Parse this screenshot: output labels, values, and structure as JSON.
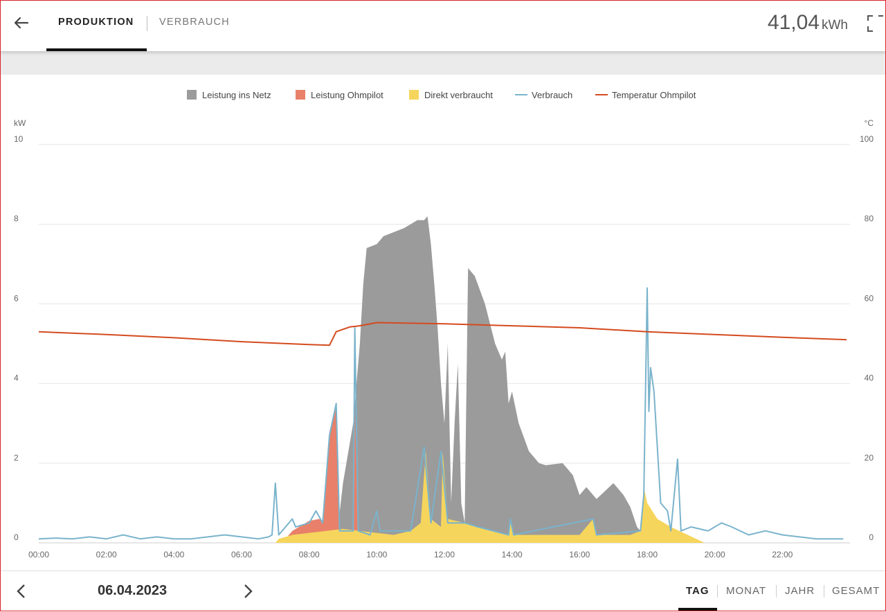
{
  "header": {
    "tabs": [
      {
        "label": "PRODUKTION",
        "active": true
      },
      {
        "label": "VERBRAUCH",
        "active": false
      }
    ],
    "total_value": "41,04",
    "total_unit": "kWh",
    "back_icon": "arrow-left-icon",
    "fullscreen_icon": "fullscreen-icon"
  },
  "legend": [
    {
      "label": "Leistung ins Netz",
      "color": "#9b9b9b",
      "kind": "area"
    },
    {
      "label": "Leistung Ohmpilot",
      "color": "#e8806a",
      "kind": "area"
    },
    {
      "label": "Direkt verbraucht",
      "color": "#f6d55c",
      "kind": "area"
    },
    {
      "label": "Verbrauch",
      "color": "#7ab3cc",
      "kind": "line"
    },
    {
      "label": "Temperatur Ohmpilot",
      "color": "#d44a1e",
      "kind": "line"
    }
  ],
  "chart_data": {
    "type": "area",
    "left_axis": {
      "unit": "kW",
      "ticks": [
        "10",
        "8",
        "6",
        "4",
        "2",
        "0"
      ],
      "range": [
        0,
        10
      ]
    },
    "right_axis": {
      "unit": "°C",
      "ticks": [
        "100",
        "80",
        "60",
        "40",
        "20",
        "0"
      ],
      "range": [
        0,
        100
      ]
    },
    "x_axis": {
      "ticks": [
        "00:00",
        "02:00",
        "04:00",
        "06:00",
        "08:00",
        "10:00",
        "12:00",
        "14:00",
        "16:00",
        "18:00",
        "20:00",
        "22:00"
      ],
      "range_hours": [
        0,
        24
      ]
    },
    "grid": true,
    "series": [
      {
        "name": "Direkt verbraucht",
        "color": "#f6d55c",
        "axis": "kW",
        "points": [
          [
            7.0,
            0
          ],
          [
            7.1,
            0.1
          ],
          [
            7.5,
            0.2
          ],
          [
            8.0,
            0.25
          ],
          [
            8.5,
            0.3
          ],
          [
            9.0,
            0.35
          ],
          [
            9.5,
            0.3
          ],
          [
            10.0,
            0.25
          ],
          [
            10.5,
            0.2
          ],
          [
            11.0,
            0.3
          ],
          [
            11.3,
            0.5
          ],
          [
            11.45,
            2.3
          ],
          [
            11.6,
            0.6
          ],
          [
            11.9,
            0.4
          ],
          [
            11.95,
            2.3
          ],
          [
            12.1,
            0.6
          ],
          [
            12.6,
            0.5
          ],
          [
            13.0,
            0.4
          ],
          [
            13.5,
            0.3
          ],
          [
            13.9,
            0.2
          ],
          [
            13.95,
            0.6
          ],
          [
            14.05,
            0.2
          ],
          [
            15.0,
            0.2
          ],
          [
            16.0,
            0.2
          ],
          [
            16.4,
            0.6
          ],
          [
            16.5,
            0.2
          ],
          [
            17.5,
            0.2
          ],
          [
            17.8,
            0.3
          ],
          [
            17.9,
            1.4
          ],
          [
            18.0,
            1.0
          ],
          [
            18.3,
            0.6
          ],
          [
            18.7,
            0.4
          ],
          [
            19.2,
            0.2
          ],
          [
            19.7,
            0.0
          ]
        ]
      },
      {
        "name": "Leistung Ohmpilot",
        "color": "#e8806a",
        "axis": "kW",
        "points": [
          [
            7.2,
            0
          ],
          [
            7.5,
            0.3
          ],
          [
            8.0,
            0.55
          ],
          [
            8.3,
            0.6
          ],
          [
            8.4,
            0.5
          ],
          [
            8.6,
            2.8
          ],
          [
            8.8,
            3.4
          ],
          [
            8.9,
            0.3
          ],
          [
            9.3,
            0.3
          ],
          [
            9.35,
            3.4
          ],
          [
            9.45,
            0.2
          ],
          [
            9.5,
            0
          ]
        ]
      },
      {
        "name": "Leistung ins Netz",
        "color": "#9b9b9b",
        "axis": "kW",
        "points": [
          [
            8.8,
            0
          ],
          [
            9.0,
            1.5
          ],
          [
            9.3,
            3.0
          ],
          [
            9.5,
            5.0
          ],
          [
            9.6,
            6.5
          ],
          [
            9.7,
            7.4
          ],
          [
            10.0,
            7.5
          ],
          [
            10.2,
            7.7
          ],
          [
            10.5,
            7.8
          ],
          [
            10.8,
            7.9
          ],
          [
            11.0,
            8.0
          ],
          [
            11.2,
            8.1
          ],
          [
            11.4,
            8.1
          ],
          [
            11.5,
            8.2
          ],
          [
            11.6,
            7.5
          ],
          [
            11.7,
            6.5
          ],
          [
            11.8,
            5.4
          ],
          [
            11.9,
            4.0
          ],
          [
            12.0,
            3.0
          ],
          [
            12.1,
            5.0
          ],
          [
            12.2,
            1.0
          ],
          [
            12.3,
            3.0
          ],
          [
            12.4,
            4.5
          ],
          [
            12.5,
            1.0
          ],
          [
            12.6,
            0.5
          ],
          [
            12.7,
            6.9
          ],
          [
            12.9,
            6.7
          ],
          [
            13.2,
            6.0
          ],
          [
            13.5,
            5.0
          ],
          [
            13.7,
            4.6
          ],
          [
            13.8,
            4.8
          ],
          [
            13.9,
            3.5
          ],
          [
            14.0,
            3.8
          ],
          [
            14.2,
            3.0
          ],
          [
            14.5,
            2.3
          ],
          [
            14.8,
            2.0
          ],
          [
            15.0,
            1.95
          ],
          [
            15.5,
            2.0
          ],
          [
            15.8,
            1.7
          ],
          [
            16.0,
            1.2
          ],
          [
            16.2,
            1.4
          ],
          [
            16.5,
            1.1
          ],
          [
            17.0,
            1.5
          ],
          [
            17.3,
            1.2
          ],
          [
            17.5,
            0.9
          ],
          [
            17.7,
            0.4
          ],
          [
            17.9,
            0.2
          ],
          [
            18.0,
            0
          ]
        ]
      },
      {
        "name": "Verbrauch",
        "color": "#7ab3cc",
        "axis": "kW",
        "points": [
          [
            0,
            0.1
          ],
          [
            0.5,
            0.12
          ],
          [
            1.0,
            0.1
          ],
          [
            1.5,
            0.15
          ],
          [
            2.0,
            0.1
          ],
          [
            2.5,
            0.2
          ],
          [
            3.0,
            0.1
          ],
          [
            3.5,
            0.15
          ],
          [
            4.0,
            0.1
          ],
          [
            4.5,
            0.1
          ],
          [
            5.0,
            0.15
          ],
          [
            5.5,
            0.2
          ],
          [
            6.0,
            0.15
          ],
          [
            6.5,
            0.1
          ],
          [
            6.8,
            0.15
          ],
          [
            6.9,
            0.2
          ],
          [
            7.0,
            1.5
          ],
          [
            7.1,
            0.2
          ],
          [
            7.5,
            0.6
          ],
          [
            7.6,
            0.4
          ],
          [
            8.0,
            0.5
          ],
          [
            8.2,
            0.8
          ],
          [
            8.4,
            0.5
          ],
          [
            8.6,
            2.7
          ],
          [
            8.8,
            3.5
          ],
          [
            8.9,
            0.3
          ],
          [
            9.3,
            0.3
          ],
          [
            9.35,
            5.4
          ],
          [
            9.45,
            0.3
          ],
          [
            9.8,
            0.2
          ],
          [
            10.0,
            0.8
          ],
          [
            10.1,
            0.3
          ],
          [
            11.0,
            0.3
          ],
          [
            11.4,
            2.4
          ],
          [
            11.6,
            0.5
          ],
          [
            11.9,
            2.3
          ],
          [
            12.1,
            0.5
          ],
          [
            12.6,
            0.5
          ],
          [
            13.0,
            0.4
          ],
          [
            13.9,
            0.2
          ],
          [
            13.95,
            0.6
          ],
          [
            14.05,
            0.2
          ],
          [
            16.4,
            0.6
          ],
          [
            16.5,
            0.2
          ],
          [
            17.8,
            0.3
          ],
          [
            17.9,
            1.2
          ],
          [
            18.0,
            6.4
          ],
          [
            18.05,
            3.3
          ],
          [
            18.1,
            4.4
          ],
          [
            18.2,
            3.8
          ],
          [
            18.4,
            1.0
          ],
          [
            18.6,
            0.8
          ],
          [
            18.7,
            0.3
          ],
          [
            18.9,
            2.1
          ],
          [
            19.0,
            0.3
          ],
          [
            19.3,
            0.4
          ],
          [
            19.8,
            0.3
          ],
          [
            20.2,
            0.5
          ],
          [
            20.5,
            0.4
          ],
          [
            21.0,
            0.2
          ],
          [
            21.5,
            0.3
          ],
          [
            22.0,
            0.2
          ],
          [
            22.5,
            0.15
          ],
          [
            23.0,
            0.1
          ],
          [
            23.5,
            0.1
          ],
          [
            23.8,
            0.1
          ]
        ]
      },
      {
        "name": "Temperatur Ohmpilot",
        "color": "#d44a1e",
        "axis": "°C",
        "points": [
          [
            0,
            53
          ],
          [
            2,
            52.3
          ],
          [
            4,
            51.5
          ],
          [
            6,
            50.5
          ],
          [
            8,
            49.8
          ],
          [
            8.6,
            49.6
          ],
          [
            8.8,
            53
          ],
          [
            9.2,
            54.2
          ],
          [
            9.5,
            54.5
          ],
          [
            10,
            55.3
          ],
          [
            12,
            55
          ],
          [
            14,
            54.5
          ],
          [
            16,
            54
          ],
          [
            18,
            53
          ],
          [
            20,
            52.3
          ],
          [
            22,
            51.6
          ],
          [
            23.9,
            51
          ]
        ]
      }
    ]
  },
  "footer": {
    "date": "06.04.2023",
    "prev_icon": "chevron-left-icon",
    "next_icon": "chevron-right-icon",
    "periods": [
      "TAG",
      "MONAT",
      "JAHR",
      "GESAMT"
    ],
    "active_period": "TAG"
  }
}
